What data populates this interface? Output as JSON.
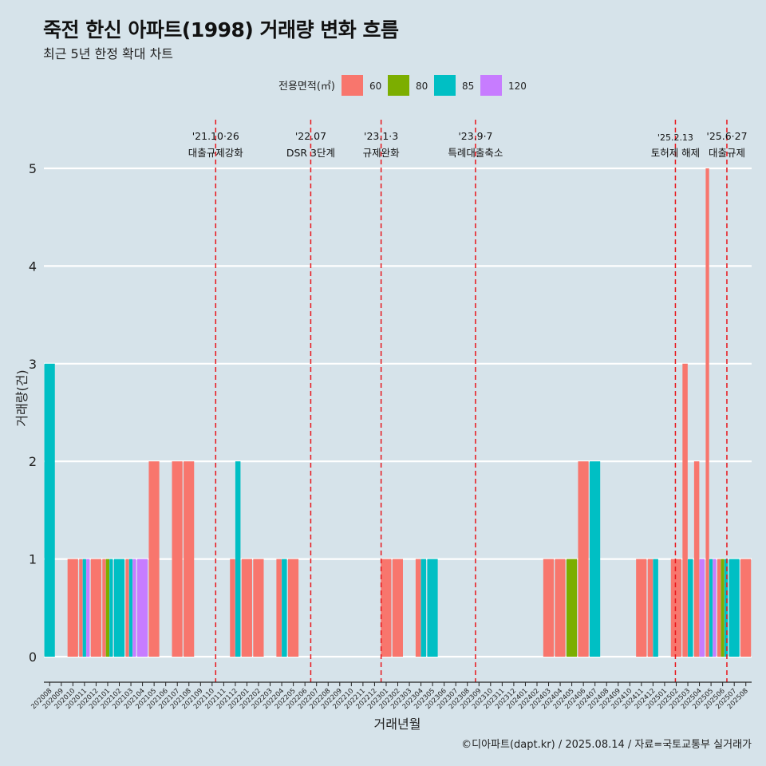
{
  "title": "죽전 한신 아파트(1998) 거래량 변화 흐름",
  "subtitle": "최근 5년 한정 확대 차트",
  "caption": "©디아파트(dapt.kr) / 2025.08.14 / 자료=국토교통부 실거래가",
  "colors": {
    "60": "#f8766d",
    "80": "#7cae00",
    "85": "#00bfc4",
    "120": "#c77cff",
    "background": "#d6e3ea",
    "vline": "#e8161b"
  },
  "chart_data": {
    "type": "bar",
    "title": "죽전 한신 아파트(1998) 거래량 변화 흐름",
    "subtitle": "최근 5년 한정 확대 차트",
    "xlabel": "거래년월",
    "ylabel": "거래량(건)",
    "ylim": [
      0,
      5
    ],
    "yticks": [
      0,
      1,
      2,
      3,
      4,
      5
    ],
    "grid": true,
    "legend": {
      "title": "전용면적(㎡)",
      "position": "top",
      "entries": [
        "60",
        "80",
        "85",
        "120"
      ]
    },
    "categories": [
      "202008",
      "202009",
      "202010",
      "202011",
      "202012",
      "202101",
      "202102",
      "202103",
      "202104",
      "202105",
      "202106",
      "202107",
      "202108",
      "202109",
      "202110",
      "202111",
      "202112",
      "202201",
      "202202",
      "202203",
      "202204",
      "202205",
      "202206",
      "202207",
      "202208",
      "202209",
      "202210",
      "202211",
      "202212",
      "202301",
      "202302",
      "202303",
      "202304",
      "202305",
      "202306",
      "202307",
      "202308",
      "202309",
      "202310",
      "202311",
      "202312",
      "202401",
      "202402",
      "202403",
      "202404",
      "202405",
      "202406",
      "202407",
      "202408",
      "202409",
      "202410",
      "202411",
      "202412",
      "202501",
      "202502",
      "202503",
      "202504",
      "202505",
      "202506",
      "202507",
      "202508"
    ],
    "bars": [
      {
        "month": "202008",
        "area": "85",
        "value": 3
      },
      {
        "month": "202010",
        "area": "60",
        "value": 1
      },
      {
        "month": "202011",
        "area": "60",
        "value": 1
      },
      {
        "month": "202011",
        "area": "85",
        "value": 1
      },
      {
        "month": "202011",
        "area": "120",
        "value": 1
      },
      {
        "month": "202012",
        "area": "60",
        "value": 1
      },
      {
        "month": "202101",
        "area": "60",
        "value": 1
      },
      {
        "month": "202101",
        "area": "80",
        "value": 1
      },
      {
        "month": "202101",
        "area": "85",
        "value": 1
      },
      {
        "month": "202102",
        "area": "85",
        "value": 1
      },
      {
        "month": "202103",
        "area": "60",
        "value": 1
      },
      {
        "month": "202103",
        "area": "85",
        "value": 1
      },
      {
        "month": "202103",
        "area": "120",
        "value": 1
      },
      {
        "month": "202104",
        "area": "120",
        "value": 1
      },
      {
        "month": "202105",
        "area": "60",
        "value": 2
      },
      {
        "month": "202107",
        "area": "60",
        "value": 2
      },
      {
        "month": "202108",
        "area": "60",
        "value": 2
      },
      {
        "month": "202112",
        "area": "60",
        "value": 1
      },
      {
        "month": "202112",
        "area": "85",
        "value": 2
      },
      {
        "month": "202201",
        "area": "60",
        "value": 1
      },
      {
        "month": "202202",
        "area": "60",
        "value": 1
      },
      {
        "month": "202204",
        "area": "60",
        "value": 1
      },
      {
        "month": "202204",
        "area": "85",
        "value": 1
      },
      {
        "month": "202205",
        "area": "60",
        "value": 1
      },
      {
        "month": "202301",
        "area": "60",
        "value": 1
      },
      {
        "month": "202302",
        "area": "60",
        "value": 1
      },
      {
        "month": "202304",
        "area": "60",
        "value": 1
      },
      {
        "month": "202304",
        "area": "85",
        "value": 1
      },
      {
        "month": "202305",
        "area": "85",
        "value": 1
      },
      {
        "month": "202403",
        "area": "60",
        "value": 1
      },
      {
        "month": "202404",
        "area": "60",
        "value": 1
      },
      {
        "month": "202405",
        "area": "80",
        "value": 1
      },
      {
        "month": "202406",
        "area": "60",
        "value": 2
      },
      {
        "month": "202407",
        "area": "85",
        "value": 2
      },
      {
        "month": "202411",
        "area": "60",
        "value": 1
      },
      {
        "month": "202412",
        "area": "60",
        "value": 1
      },
      {
        "month": "202412",
        "area": "85",
        "value": 1
      },
      {
        "month": "202502",
        "area": "60",
        "value": 1
      },
      {
        "month": "202503",
        "area": "60",
        "value": 3
      },
      {
        "month": "202503",
        "area": "85",
        "value": 1
      },
      {
        "month": "202504",
        "area": "60",
        "value": 2
      },
      {
        "month": "202504",
        "area": "120",
        "value": 1
      },
      {
        "month": "202505",
        "area": "60",
        "value": 5
      },
      {
        "month": "202505",
        "area": "85",
        "value": 1
      },
      {
        "month": "202505",
        "area": "120",
        "value": 1
      },
      {
        "month": "202506",
        "area": "60",
        "value": 1
      },
      {
        "month": "202506",
        "area": "80",
        "value": 1
      },
      {
        "month": "202506",
        "area": "85",
        "value": 1
      },
      {
        "month": "202507",
        "area": "85",
        "value": 1
      },
      {
        "month": "202508",
        "area": "60",
        "value": 1
      }
    ],
    "annotations": [
      {
        "date": "2021-10-26",
        "line1": "'21.10·26",
        "line2": "대출규제강화"
      },
      {
        "date": "2022-07-01",
        "line1": "'22.07",
        "line2": "DSR 3단계"
      },
      {
        "date": "2023-01-03",
        "line1": "'23.1·3",
        "line2": "규제완화"
      },
      {
        "date": "2023-09-07",
        "line1": "'23.9·7",
        "line2": "특례대출축소"
      },
      {
        "date": "2025-02-13",
        "line1": "'25.2.13",
        "line2": "토허제 해제"
      },
      {
        "date": "2025-06-27",
        "line1": "'25.6·27",
        "line2": "대출규제"
      }
    ]
  }
}
